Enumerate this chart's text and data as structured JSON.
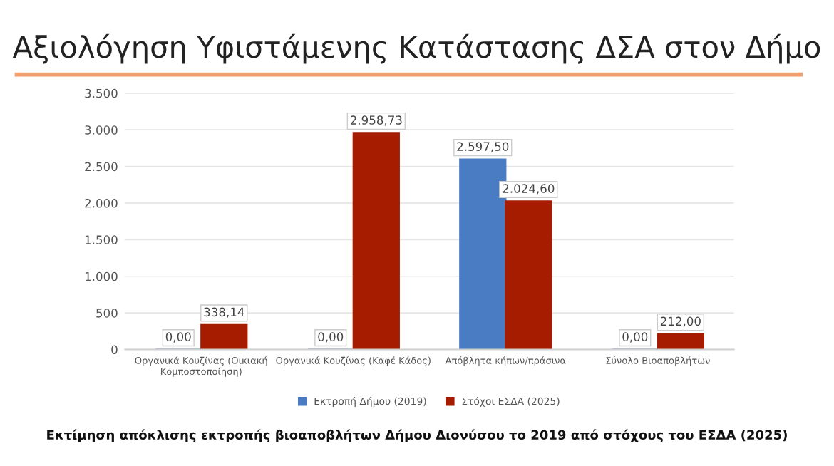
{
  "chart_data": {
    "type": "bar",
    "title": "Αξιολόγηση Υφιστάμενης Κατάστασης ΔΣΑ στον Δήμο",
    "categories": [
      "Οργανικά Κουζίνας (Οικιακή\nΚομποστοποίηση)",
      "Οργανικά Κουζίνας (Καφέ Κάδος)",
      "Απόβλητα κήπων/πράσινα",
      "Σύνολο Βιοαποβλήτων"
    ],
    "series": [
      {
        "name": "Εκτροπή Δήμου (2019)",
        "color": "#4a7cc4",
        "values": [
          0,
          0,
          2597.5,
          0
        ],
        "value_labels": [
          "0,00",
          "0,00",
          "2.597,50",
          "0,00"
        ]
      },
      {
        "name": "Στόχοι ΕΣΔΑ (2025)",
        "color": "#a61c00",
        "values": [
          338.14,
          2958.73,
          2024.6,
          212
        ],
        "value_labels": [
          "338,14",
          "2.958,73",
          "2.024,60",
          "212,00"
        ]
      }
    ],
    "ylim": [
      0,
      3500
    ],
    "yticks": [
      0,
      500,
      {
        "value": 1000,
        "label": "1.000"
      },
      {
        "value": 1500,
        "label": "1.500"
      },
      {
        "value": 2000,
        "label": "2.000"
      },
      {
        "value": 2500,
        "label": "2.500"
      },
      {
        "value": 3000,
        "label": "3.000"
      },
      {
        "value": 3500,
        "label": "3.500"
      }
    ],
    "grid": "y",
    "legend": "bottom",
    "annotations": [
      "Εκτίμηση απόκλισης εκτροπής βιοαποβλήτων Δήμου Διονύσου το 2019 από στόχους του ΕΣΔΑ (2025)"
    ]
  }
}
